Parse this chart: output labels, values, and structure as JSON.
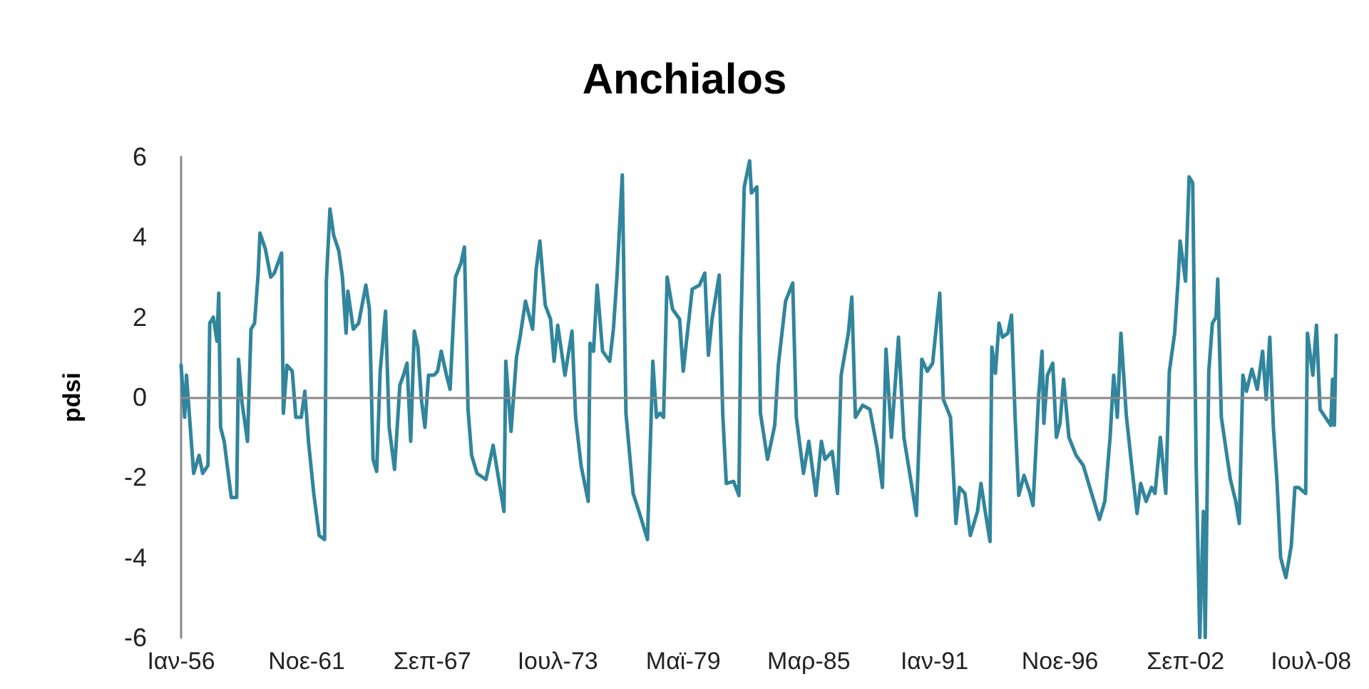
{
  "chart_data": {
    "type": "line",
    "title": "Anchialos",
    "ylabel": "pdsi",
    "xlim": [
      "1956-01",
      "2009-09"
    ],
    "xticks": [
      {
        "value": "1956-01",
        "label": "Ιαν-56"
      },
      {
        "value": "1961-11",
        "label": "Νοε-61"
      },
      {
        "value": "1967-09",
        "label": "Σεπ-67"
      },
      {
        "value": "1973-07",
        "label": "Ιουλ-73"
      },
      {
        "value": "1979-05",
        "label": "Μαϊ-79"
      },
      {
        "value": "1985-03",
        "label": "Μαρ-85"
      },
      {
        "value": "1991-01",
        "label": "Ιαν-91"
      },
      {
        "value": "1996-11",
        "label": "Νοε-96"
      },
      {
        "value": "2002-09",
        "label": "Σεπ-02"
      },
      {
        "value": "2008-07",
        "label": "Ιουλ-08"
      }
    ],
    "ylim": [
      -6,
      6
    ],
    "yticks": [
      -6,
      -4,
      -2,
      0,
      2,
      4,
      6
    ],
    "grid": false,
    "ref_lines": [
      {
        "axis": "y",
        "value": 0,
        "color": "#888888",
        "line_style": "solid"
      }
    ],
    "marker": "none",
    "line_style": "solid",
    "series": [
      {
        "color": "#31859c",
        "x": [
          "1956-01",
          "1956-03",
          "1956-04",
          "1956-08",
          "1956-11",
          "1957-01",
          "1957-04",
          "1957-05",
          "1957-07",
          "1957-09",
          "1957-10",
          "1957-11",
          "1958-01",
          "1958-05",
          "1958-08",
          "1958-09",
          "1958-11",
          "1959-02",
          "1959-04",
          "1959-06",
          "1959-08",
          "1959-09",
          "1959-12",
          "1960-03",
          "1960-05",
          "1960-07",
          "1960-09",
          "1960-10",
          "1960-12",
          "1961-03",
          "1961-05",
          "1961-08",
          "1961-10",
          "1961-12",
          "1962-03",
          "1962-06",
          "1962-09",
          "1962-10",
          "1962-12",
          "1963-02",
          "1963-05",
          "1963-07",
          "1963-09",
          "1963-10",
          "1964-01",
          "1964-04",
          "1964-08",
          "1964-10",
          "1964-12",
          "1965-02",
          "1965-04",
          "1965-07",
          "1965-09",
          "1965-12",
          "1966-03",
          "1966-05",
          "1966-07",
          "1966-09",
          "1966-11",
          "1967-01",
          "1967-03",
          "1967-05",
          "1967-07",
          "1967-10",
          "1967-12",
          "1968-02",
          "1968-05",
          "1968-07",
          "1968-10",
          "1969-01",
          "1969-03",
          "1969-05",
          "1969-07",
          "1969-10",
          "1970-03",
          "1970-07",
          "1971-01",
          "1971-02",
          "1971-05",
          "1971-08",
          "1971-10",
          "1972-01",
          "1972-05",
          "1972-07",
          "1972-09",
          "1972-12",
          "1973-03",
          "1973-05",
          "1973-07",
          "1973-11",
          "1974-03",
          "1974-05",
          "1974-08",
          "1974-12",
          "1975-01",
          "1975-03",
          "1975-05",
          "1975-08",
          "1975-12",
          "1976-02",
          "1976-04",
          "1976-07",
          "1976-09",
          "1977-01",
          "1977-05",
          "1977-09",
          "1977-12",
          "1978-02",
          "1978-04",
          "1978-06",
          "1978-08",
          "1978-11",
          "1979-03",
          "1979-05",
          "1979-10",
          "1980-02",
          "1980-05",
          "1980-07",
          "1980-09",
          "1981-01",
          "1981-03",
          "1981-05",
          "1981-09",
          "1981-12",
          "1982-01",
          "1982-03",
          "1982-06",
          "1982-07",
          "1982-10",
          "1982-12",
          "1983-04",
          "1983-08",
          "1983-10",
          "1984-02",
          "1984-06",
          "1984-08",
          "1984-12",
          "1985-03",
          "1985-07",
          "1985-10",
          "1985-12",
          "1986-04",
          "1986-07",
          "1986-09",
          "1987-01",
          "1987-03",
          "1987-05",
          "1987-09",
          "1988-01",
          "1988-05",
          "1988-08",
          "1988-10",
          "1989-01",
          "1989-05",
          "1989-08",
          "1990-01",
          "1990-03",
          "1990-06",
          "1990-09",
          "1990-12",
          "1991-04",
          "1991-06",
          "1991-10",
          "1992-01",
          "1992-03",
          "1992-06",
          "1992-09",
          "1993-01",
          "1993-03",
          "1993-05",
          "1993-08",
          "1993-09",
          "1993-11",
          "1994-01",
          "1994-03",
          "1994-06",
          "1994-08",
          "1994-10",
          "1994-12",
          "1995-03",
          "1995-06",
          "1995-08",
          "1995-11",
          "1996-01",
          "1996-02",
          "1996-04",
          "1996-07",
          "1996-09",
          "1996-11",
          "1997-01",
          "1997-04",
          "1997-08",
          "1997-12",
          "1998-03",
          "1998-09",
          "1998-12",
          "1999-03",
          "1999-05",
          "1999-07",
          "1999-09",
          "1999-12",
          "2000-03",
          "2000-06",
          "2000-08",
          "2000-11",
          "2001-02",
          "2001-04",
          "2001-07",
          "2001-10",
          "2001-12",
          "2002-03",
          "2002-05",
          "2002-06",
          "2002-09",
          "2002-11",
          "2003-01",
          "2003-03",
          "2003-05",
          "2003-07",
          "2003-08",
          "2003-10",
          "2003-12",
          "2004-02",
          "2004-03",
          "2004-05",
          "2004-10",
          "2005-01",
          "2005-03",
          "2005-05",
          "2005-07",
          "2005-10",
          "2006-01",
          "2006-04",
          "2006-06",
          "2006-08",
          "2006-10",
          "2006-12",
          "2007-02",
          "2007-05",
          "2007-08",
          "2007-10",
          "2007-12",
          "2008-04",
          "2008-05",
          "2008-08",
          "2008-10",
          "2008-12",
          "2009-03",
          "2009-06",
          "2009-07",
          "2009-08",
          "2009-09"
        ],
        "values": [
          0.8,
          -0.5,
          0.55,
          -1.9,
          -1.45,
          -1.9,
          -1.7,
          1.85,
          2.0,
          1.4,
          2.6,
          -0.75,
          -1.1,
          -2.5,
          -2.5,
          0.95,
          -0.15,
          -1.1,
          1.7,
          1.85,
          3.1,
          4.1,
          3.7,
          3.0,
          3.1,
          3.35,
          3.6,
          -0.4,
          0.8,
          0.65,
          -0.5,
          -0.5,
          0.15,
          -1.1,
          -2.4,
          -3.45,
          -3.55,
          2.9,
          4.7,
          4.05,
          3.65,
          3.0,
          1.6,
          2.65,
          1.7,
          1.85,
          2.8,
          2.2,
          -1.55,
          -1.85,
          0.65,
          2.15,
          -0.75,
          -1.8,
          0.3,
          0.55,
          0.85,
          -1.1,
          1.65,
          1.25,
          -0.05,
          -0.75,
          0.55,
          0.55,
          0.65,
          1.15,
          0.55,
          0.2,
          3.0,
          3.35,
          3.75,
          -0.3,
          -1.45,
          -1.9,
          -2.05,
          -1.2,
          -2.85,
          0.9,
          -0.85,
          1.0,
          1.5,
          2.4,
          1.7,
          3.2,
          3.9,
          2.3,
          1.95,
          0.9,
          1.8,
          0.55,
          1.65,
          -0.5,
          -1.7,
          -2.6,
          1.35,
          1.15,
          2.8,
          1.15,
          0.9,
          1.7,
          3.0,
          5.55,
          -0.4,
          -2.4,
          -2.95,
          -3.55,
          0.9,
          -0.5,
          -0.4,
          -0.5,
          3.0,
          2.2,
          1.95,
          0.65,
          2.7,
          2.8,
          3.1,
          1.05,
          1.95,
          3.05,
          -0.4,
          -2.15,
          -2.1,
          -2.45,
          1.55,
          5.25,
          5.9,
          5.1,
          5.25,
          -0.4,
          -1.55,
          -0.7,
          0.8,
          2.4,
          2.85,
          -0.5,
          -1.9,
          -1.1,
          -2.45,
          -1.1,
          -1.55,
          -1.35,
          -2.4,
          0.55,
          1.6,
          2.5,
          -0.5,
          -0.2,
          -0.3,
          -1.25,
          -2.25,
          1.2,
          -1.0,
          1.5,
          -1.0,
          -2.4,
          -2.95,
          0.95,
          0.65,
          0.85,
          2.6,
          -0.05,
          -0.5,
          -3.15,
          -2.25,
          -2.4,
          -3.45,
          -2.85,
          -2.15,
          -2.75,
          -3.6,
          1.25,
          0.6,
          1.85,
          1.5,
          1.6,
          2.05,
          -0.5,
          -2.45,
          -1.95,
          -2.35,
          -2.7,
          -0.05,
          1.15,
          -0.65,
          0.55,
          0.85,
          -1.0,
          -0.65,
          0.45,
          -1.0,
          -1.45,
          -1.7,
          -2.15,
          -3.05,
          -2.6,
          -1.0,
          0.55,
          -0.5,
          1.6,
          -0.45,
          -1.7,
          -2.9,
          -2.15,
          -2.6,
          -2.25,
          -2.4,
          -1.0,
          -2.4,
          0.65,
          1.6,
          3.0,
          3.9,
          2.9,
          5.5,
          5.35,
          -1.7,
          -6.0,
          -2.85,
          -6.0,
          0.65,
          1.85,
          2.0,
          2.95,
          -0.5,
          -2.05,
          -2.6,
          -3.15,
          0.55,
          0.15,
          0.7,
          0.2,
          1.15,
          -0.05,
          1.5,
          -0.75,
          -2.1,
          -4.0,
          -4.5,
          -3.7,
          -2.25,
          -2.25,
          -2.4,
          1.6,
          0.55,
          1.8,
          -0.3,
          -0.5,
          -0.7,
          0.45,
          -0.7,
          1.55
        ]
      }
    ]
  }
}
